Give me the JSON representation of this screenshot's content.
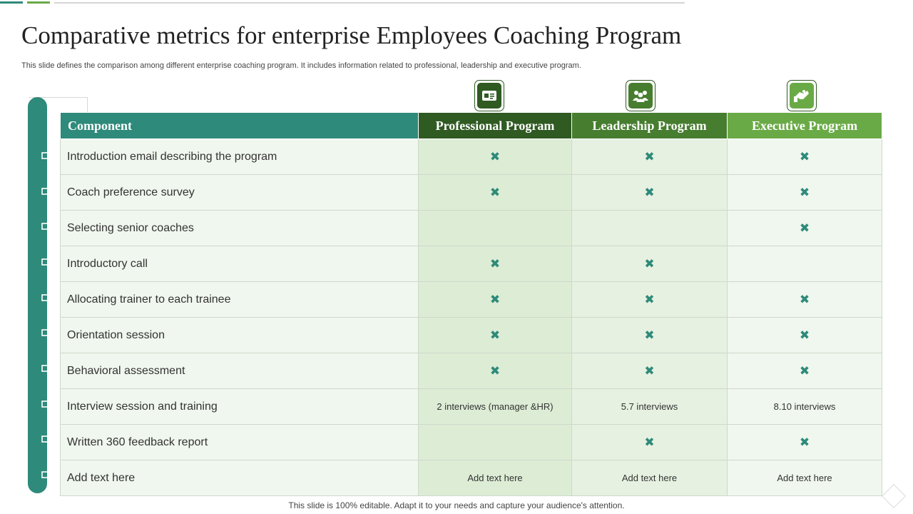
{
  "slide": {
    "title": "Comparative metrics for enterprise Employees Coaching Program",
    "subtitle": "This slide defines the comparison among different enterprise coaching program. It includes information related to professional, leadership and executive program.",
    "footer": "This slide is 100% editable. Adapt it to your needs and capture your audience's attention."
  },
  "colors": {
    "teal": "#2e8a7a",
    "dark_green": "#2f5a22",
    "mid_green": "#467d2f",
    "light_green": "#6aaa46"
  },
  "table": {
    "headers": [
      "Component",
      "Professional Program",
      "Leadership Program",
      "Executive Program"
    ],
    "header_icons": [
      "id-card-icon",
      "group-icon",
      "handshake-icon"
    ],
    "check_symbol": "✖",
    "rows": [
      {
        "component": "Introduction  email describing the program",
        "professional": "✖",
        "leadership": "✖",
        "executive": "✖"
      },
      {
        "component": "Coach preference survey",
        "professional": "✖",
        "leadership": "✖",
        "executive": "✖"
      },
      {
        "component": "Selecting senior coaches",
        "professional": "",
        "leadership": "",
        "executive": "✖"
      },
      {
        "component": "Introductory  call",
        "professional": "✖",
        "leadership": "✖",
        "executive": ""
      },
      {
        "component": "Allocating trainer to each trainee",
        "professional": "✖",
        "leadership": "✖",
        "executive": "✖"
      },
      {
        "component": "Orientation session",
        "professional": "✖",
        "leadership": "✖",
        "executive": "✖"
      },
      {
        "component": "Behavioral assessment",
        "professional": "✖",
        "leadership": "✖",
        "executive": "✖"
      },
      {
        "component": "Interview  session and training",
        "professional": "2 interviews  (manager &HR)",
        "leadership": "5.7 interviews",
        "executive": "8.10 interviews"
      },
      {
        "component": "Written 360 feedback report",
        "professional": "",
        "leadership": "✖",
        "executive": "✖"
      },
      {
        "component": "Add text here",
        "professional": "Add text here",
        "leadership": "Add text here",
        "executive": "Add text here"
      }
    ]
  }
}
